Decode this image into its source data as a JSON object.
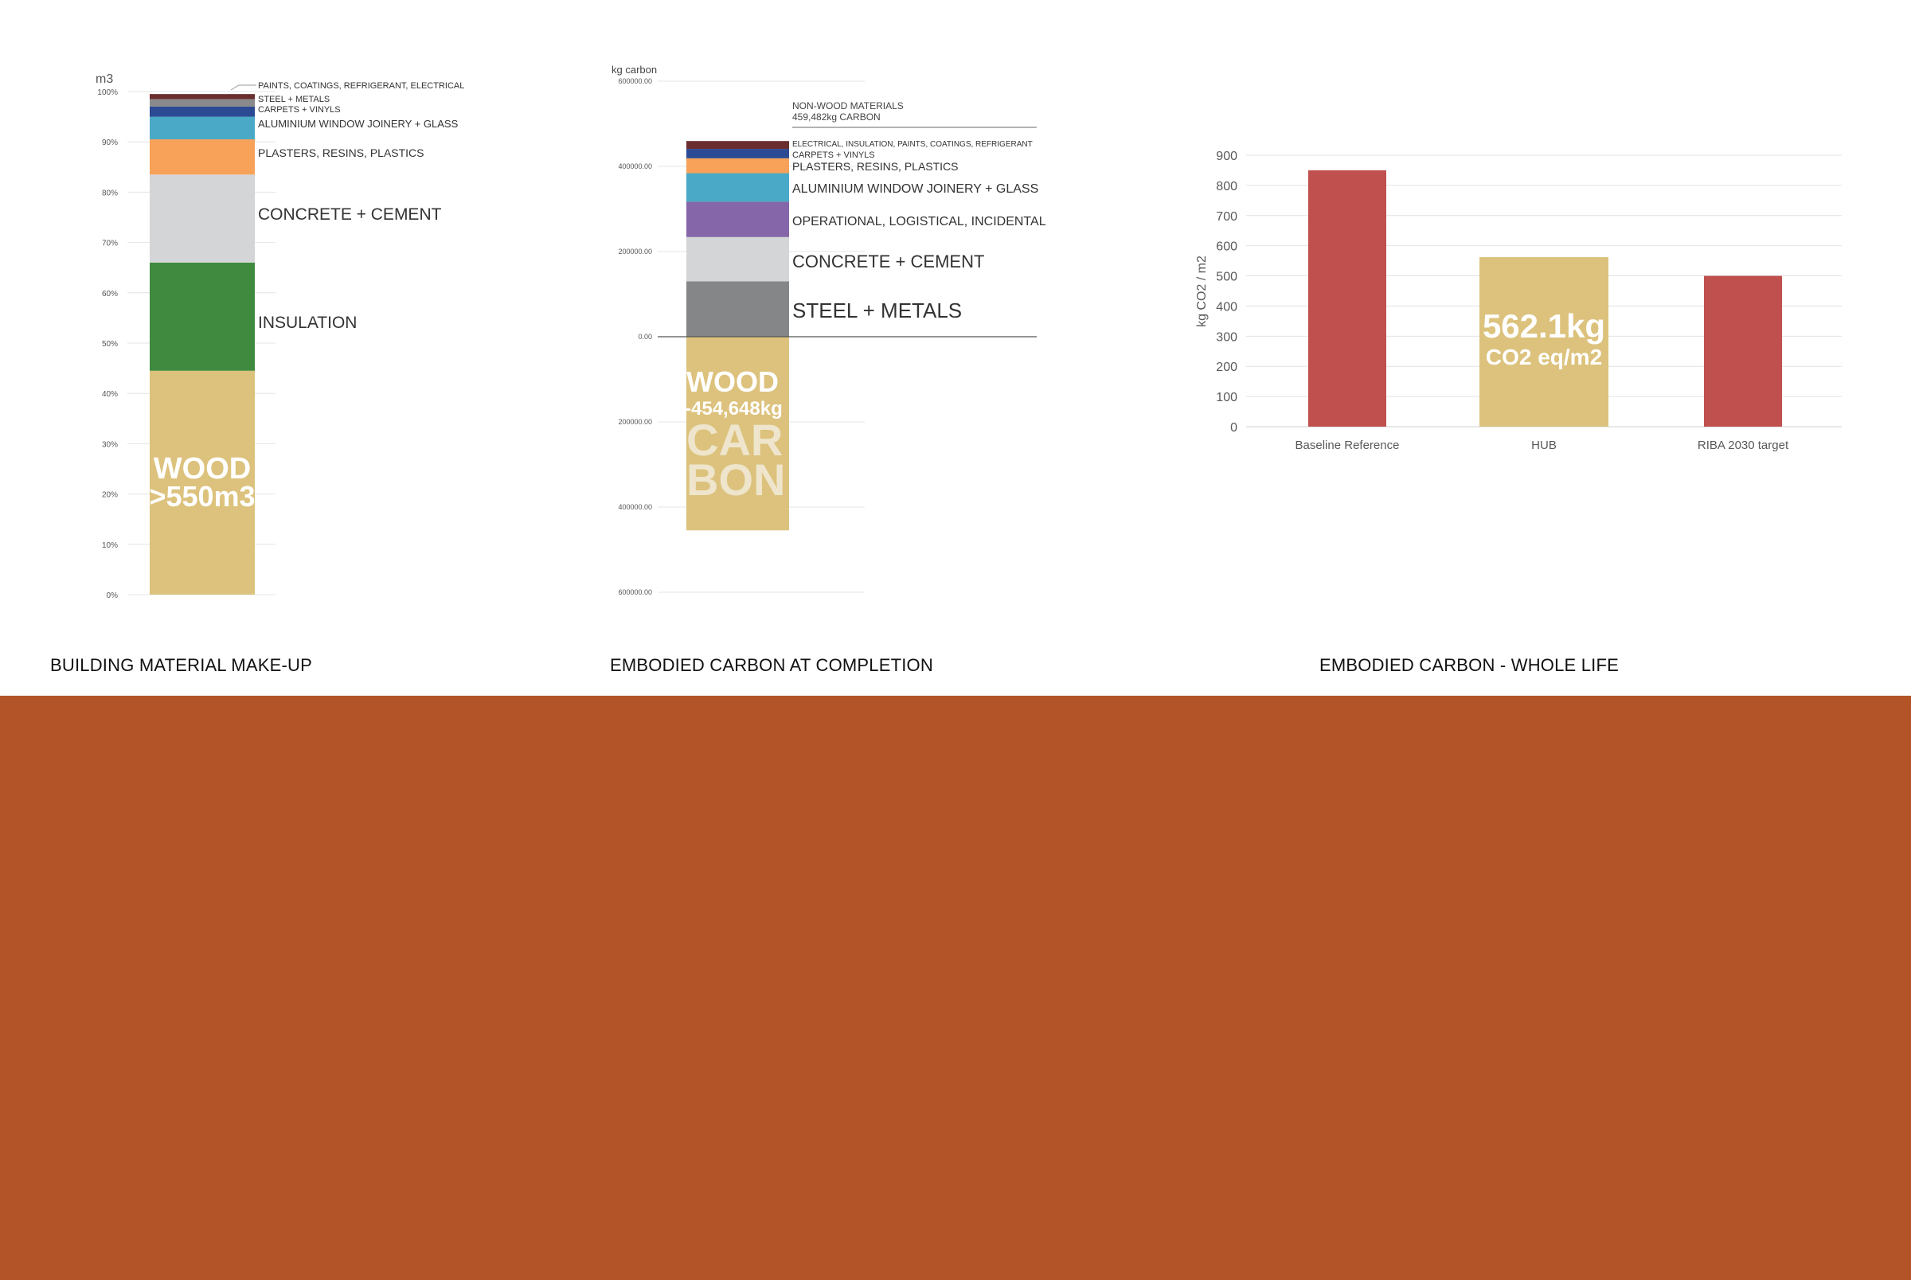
{
  "charts": {
    "material": {
      "unit_label": "m3",
      "caption": "BUILDING MATERIAL MAKE-UP",
      "ticks": [
        "0%",
        "10%",
        "20%",
        "30%",
        "40%",
        "50%",
        "60%",
        "70%",
        "80%",
        "90%",
        "100%"
      ],
      "wood_line1": "WOOD",
      "wood_line2": ">550m3"
    },
    "carbon": {
      "unit_label": "kg carbon",
      "caption": "EMBODIED CARBON AT COMPLETION",
      "ticks": [
        "600000.00",
        "400000.00",
        "200000.00",
        "0.00",
        "200000.00",
        "400000.00",
        "600000.00"
      ],
      "nonwood_line1": "NON-WOOD MATERIALS",
      "nonwood_line2": "459,482kg CARBON",
      "wood_line1": "WOOD",
      "wood_line2": "-454,648kg",
      "wood_line3": "CAR",
      "wood_line4": "BON"
    },
    "wholelife": {
      "caption": "EMBODIED CARBON - WHOLE LIFE",
      "ylabel": "kg CO2 / m2",
      "ticks": [
        "0",
        "100",
        "200",
        "300",
        "400",
        "500",
        "600",
        "700",
        "800",
        "900"
      ],
      "hub_line1": "562.1kg",
      "hub_line2": "CO2 eq/m2"
    }
  },
  "chart_data": [
    {
      "type": "bar",
      "stacked": true,
      "ylabel": "m3",
      "ylim": [
        0,
        100
      ],
      "unit": "%",
      "series": [
        {
          "name": "WOOD",
          "values": [
            44.5
          ],
          "color": "#dcc27d"
        },
        {
          "name": "INSULATION",
          "values": [
            21.5
          ],
          "color": "#3f8a3f"
        },
        {
          "name": "CONCRETE + CEMENT",
          "values": [
            17.5
          ],
          "color": "#d4d5d7"
        },
        {
          "name": "PLASTERS, RESINS, PLASTICS",
          "values": [
            7
          ],
          "color": "#f7a159"
        },
        {
          "name": "ALUMINIUM WINDOW JOINERY + GLASS",
          "values": [
            4.5
          ],
          "color": "#4aa9c6"
        },
        {
          "name": "CARPETS + VINYLS",
          "values": [
            2
          ],
          "color": "#2c4a94"
        },
        {
          "name": "STEEL + METALS",
          "values": [
            1.5
          ],
          "color": "#8a8a8c"
        },
        {
          "name": "PAINTS, COATINGS, REFRIGERANT, ELECTRICAL",
          "values": [
            1
          ],
          "color": "#6b2e2e"
        }
      ]
    },
    {
      "type": "bar",
      "stacked": true,
      "ylabel": "kg carbon",
      "ylim": [
        -600000,
        600000
      ],
      "series": [
        {
          "name": "STEEL + METALS",
          "values": [
            130000
          ],
          "color": "#858688"
        },
        {
          "name": "CONCRETE + CEMENT",
          "values": [
            104000
          ],
          "color": "#d4d5d7"
        },
        {
          "name": "OPERATIONAL, LOGISTICAL, INCIDENTAL",
          "values": [
            83000
          ],
          "color": "#8566a8"
        },
        {
          "name": "ALUMINIUM WINDOW JOINERY + GLASS",
          "values": [
            67000
          ],
          "color": "#4aa9c6"
        },
        {
          "name": "PLASTERS, RESINS, PLASTICS",
          "values": [
            35000
          ],
          "color": "#f7a159"
        },
        {
          "name": "CARPETS + VINYLS",
          "values": [
            22000
          ],
          "color": "#2c4a94"
        },
        {
          "name": "ELECTRICAL, INSULATION, PAINTS, COATINGS, REFRIGERANT",
          "values": [
            18482
          ],
          "color": "#6b2e2e"
        },
        {
          "name": "WOOD",
          "values": [
            -454648
          ],
          "color": "#dcc27d"
        }
      ]
    },
    {
      "type": "bar",
      "ylabel": "kg CO2 / m2",
      "ylim": [
        0,
        900
      ],
      "categories": [
        "Baseline Reference",
        "HUB",
        "RIBA 2030 target"
      ],
      "values": [
        850,
        562.1,
        500
      ],
      "colors": [
        "#c0504d",
        "#dcc27d",
        "#c0504d"
      ]
    }
  ]
}
